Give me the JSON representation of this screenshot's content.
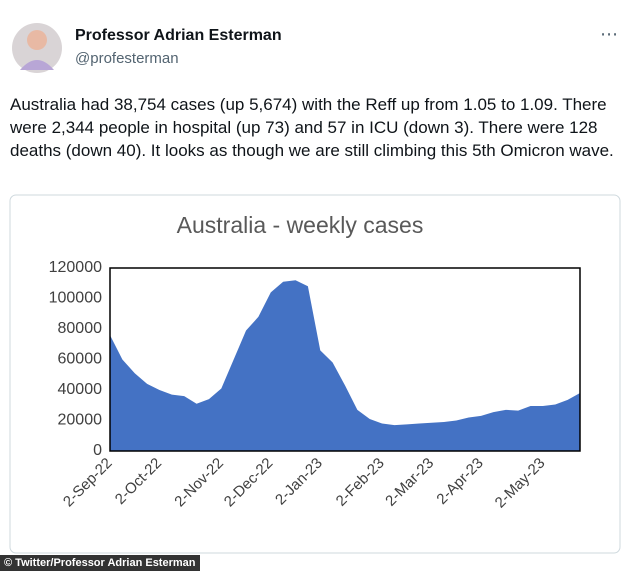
{
  "header": {
    "name": "Professor Adrian Esterman",
    "handle": "@profesterman"
  },
  "tweet_text": "Australia had 38,754 cases (up 5,674) with the Reff up from 1.05 to 1.09. There were 2,344 people in hospital (up 73) and 57 in ICU (down 3). There were 128 deaths (down 40). It looks as though we are still climbing this 5th Omicron wave.",
  "chart_data": {
    "type": "area",
    "title": "Australia - weekly cases",
    "categories": [
      "2-Sep-22",
      null,
      null,
      null,
      "2-Oct-22",
      null,
      null,
      null,
      null,
      "2-Nov-22",
      null,
      null,
      null,
      "2-Dec-22",
      null,
      null,
      null,
      "2-Jan-23",
      null,
      null,
      null,
      null,
      "2-Feb-23",
      null,
      null,
      null,
      "2-Mar-23",
      null,
      null,
      null,
      "2-Apr-23",
      null,
      null,
      null,
      null,
      "2-May-23",
      null,
      null,
      null
    ],
    "values": [
      76000,
      60000,
      51000,
      44000,
      40000,
      37000,
      36000,
      31000,
      34000,
      41000,
      60000,
      79000,
      88000,
      104000,
      111000,
      112000,
      108000,
      66000,
      58000,
      43000,
      27000,
      21000,
      18000,
      17000,
      17500,
      18000,
      18500,
      19000,
      20000,
      22000,
      23000,
      25500,
      27000,
      26500,
      29500,
      29500,
      30500,
      33500,
      38000
    ],
    "color": "#4472c4",
    "ylim": [
      0,
      120000
    ],
    "yticks": [
      0,
      20000,
      40000,
      60000,
      80000,
      100000,
      120000
    ]
  },
  "credit": "© Twitter/Professor Adrian Esterman"
}
